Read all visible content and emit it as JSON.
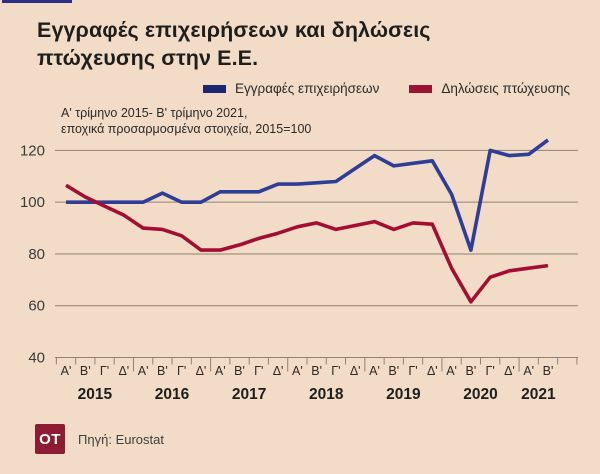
{
  "accent_color": "#2c2f86",
  "title": {
    "line1": "Εγγραφές επιχειρήσεων και δηλώσεις",
    "line2": "πτώχευσης στην Ε.Ε."
  },
  "subtitle": {
    "line1": "Α' τρίμηνο 2015- Β' τρίμηνο 2021,",
    "line2": "εποχικά προσαρμοσμένα στοιχεία, 2015=100"
  },
  "legend": {
    "items": [
      {
        "label": "Εγγραφές επιχειρήσεων",
        "color": "#1c2674"
      },
      {
        "label": "Δηλώσεις πτώχευσης",
        "color": "#9c1232"
      }
    ]
  },
  "source": {
    "logo_text": "OT",
    "logo_color": "#8c1b33",
    "text": "Πηγή: Eurostat"
  },
  "chart_data": {
    "type": "line",
    "title": "Εγγραφές επιχειρήσεων και δηλώσεις πτώχευσης στην Ε.Ε.",
    "subtitle": "Α' τρίμηνο 2015- Β' τρίμηνο 2021, εποχικά προσαρμοσμένα στοιχεία, 2015=100",
    "x_labels": [
      "Α'",
      "Β'",
      "Γ'",
      "Δ'",
      "Α'",
      "Β'",
      "Γ'",
      "Δ'",
      "Α'",
      "Β'",
      "Γ'",
      "Δ'",
      "Α'",
      "Β'",
      "Γ'",
      "Δ'",
      "Α'",
      "Β'",
      "Γ'",
      "Δ'",
      "Α'",
      "Β'",
      "Γ'",
      "Δ'",
      "Α'",
      "Β'"
    ],
    "years": [
      "2015",
      "2016",
      "2017",
      "2018",
      "2019",
      "2020",
      "2021"
    ],
    "quarters_per_year": [
      4,
      4,
      4,
      4,
      4,
      4,
      2
    ],
    "y_ticks": [
      40,
      60,
      80,
      100,
      120
    ],
    "ylim": [
      40,
      128
    ],
    "grid": true,
    "legend_position": "top",
    "axis_color": "#8f8274",
    "label_color": "#3b3b38",
    "series": [
      {
        "name": "Εγγραφές επιχειρήσεων",
        "color": "#2e3e96",
        "values": [
          100,
          100,
          100,
          100,
          100,
          103.5,
          100,
          100,
          104,
          104,
          104,
          107,
          107,
          107.5,
          108,
          113,
          118,
          114,
          115,
          116,
          103,
          81.5,
          120,
          118,
          118.5,
          124
        ]
      },
      {
        "name": "Δηλώσεις πτώχευσης",
        "color": "#a30e33",
        "values": [
          106.5,
          102,
          98.5,
          95,
          90,
          89.5,
          87,
          81.5,
          81.5,
          83.5,
          86,
          88,
          90.5,
          92,
          89.5,
          91,
          92.5,
          89.5,
          92,
          91.5,
          74.5,
          61.5,
          71,
          73.5,
          74.5,
          75.5
        ]
      }
    ]
  }
}
